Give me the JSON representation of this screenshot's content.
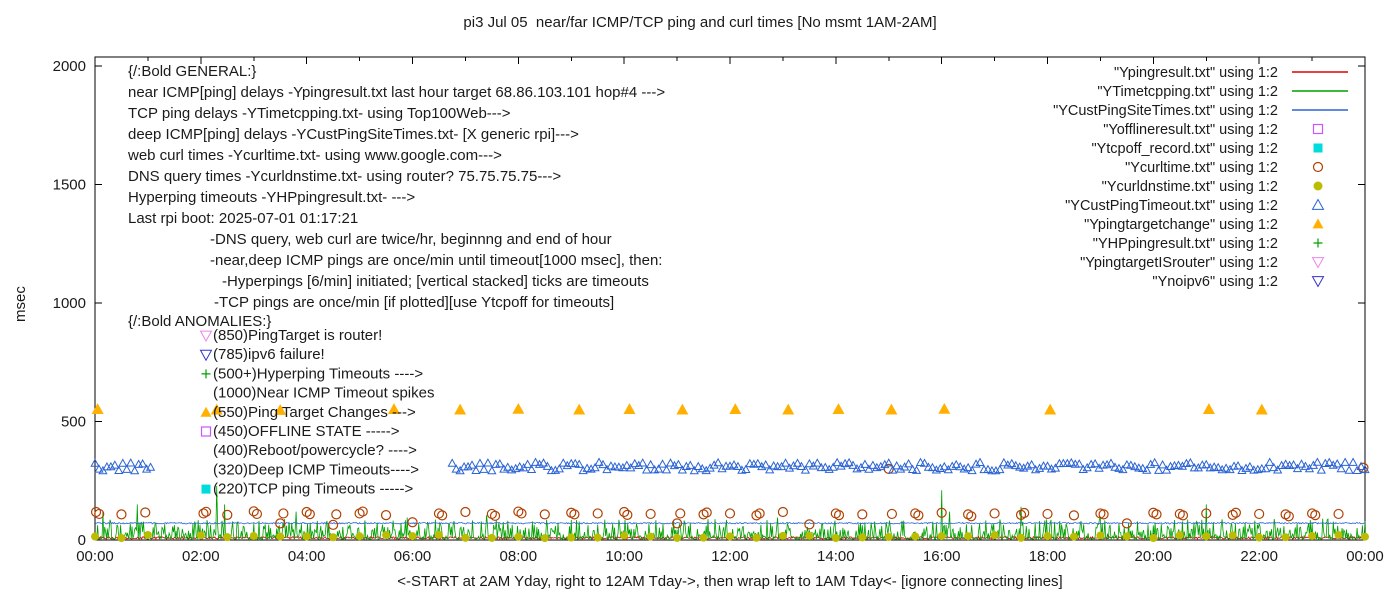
{
  "title": "pi3 Jul 05  near/far ICMP/TCP ping and curl times [No msmt 1AM-2AM]",
  "xlabel": "<-START at 2AM Yday, right to 12AM Tday->, then wrap left to 1AM Tday<- [ignore connecting lines]",
  "ylabel": "msec",
  "chart_data": {
    "type": "scatter",
    "grid": false,
    "x_axis": {
      "range": [
        0,
        24
      ],
      "tick_hours": [
        0,
        2,
        4,
        6,
        8,
        10,
        12,
        14,
        16,
        18,
        20,
        22,
        24
      ],
      "tick_labels": [
        "00:00",
        "02:00",
        "04:00",
        "06:00",
        "08:00",
        "10:00",
        "12:00",
        "14:00",
        "16:00",
        "18:00",
        "20:00",
        "22:00",
        "00:00"
      ]
    },
    "y_axis": {
      "range": [
        0,
        2000
      ],
      "ticks": [
        0,
        500,
        1000,
        1500,
        2000
      ]
    },
    "legend": [
      {
        "label": "\"Ypingresult.txt\" using 1:2",
        "marker": "line",
        "color": "#e00000"
      },
      {
        "label": "\"YTimetcpping.txt\" using 1:2",
        "marker": "line",
        "color": "#00a000"
      },
      {
        "label": "\"YCustPingSiteTimes.txt\" using 1:2",
        "marker": "line",
        "color": "#2a63d4"
      },
      {
        "label": "\"Yofflineresult.txt\" using 1:2",
        "marker": "square-open",
        "color": "#cc55ff"
      },
      {
        "label": "\"Ytcpoff_record.txt\" using 1:2",
        "marker": "square-filled",
        "color": "#00dcdc"
      },
      {
        "label": "\"Ycurltime.txt\" using 1:2",
        "marker": "circle-open",
        "color": "#b04000"
      },
      {
        "label": "\"Ycurldnstime.txt\" using 1:2",
        "marker": "circle-filled",
        "color": "#bcbc00"
      },
      {
        "label": "\"YCustPingTimeout.txt\" using 1:2",
        "marker": "triangle-open",
        "color": "#2a63d4"
      },
      {
        "label": "\"Ypingtargetchange\" using 1:2",
        "marker": "triangle-filled",
        "color": "#ffb000"
      },
      {
        "label": "\"YHPpingresult.txt\" using 1:2",
        "marker": "plus",
        "color": "#00a000"
      },
      {
        "label": "\"YpingtargetISrouter\" using 1:2",
        "marker": "triangle-down-open",
        "color": "#ee82ee"
      },
      {
        "label": "\"Ynoipv6\" using 1:2",
        "marker": "triangle-down-open",
        "color": "#3333cc"
      }
    ],
    "annotations": {
      "general": {
        "heading": "{/:Bold GENERAL:}",
        "lines": [
          "near ICMP[ping] delays -Ypingresult.txt last hour target 68.86.103.101 hop#4 --->",
          "TCP ping delays -YTimetcpping.txt- using Top100Web--->",
          "deep ICMP[ping] delays -YCustPingSiteTimes.txt- [X generic rpi]--->",
          "web curl times -Ycurltime.txt- using www.google.com--->",
          "DNS query times -Ycurldnstime.txt- using router? 75.75.75.75--->",
          "Hyperping timeouts -YHPpingresult.txt- --->",
          "Last rpi boot: 2025-07-01 01:17:21"
        ],
        "notes": [
          "-DNS query, web curl are twice/hr, beginnng and end of hour",
          "-near,deep ICMP pings are once/min until timeout[1000 msec], then:",
          "-Hyperpings [6/min] initiated; [vertical stacked] ticks are timeouts",
          "-TCP pings are once/min [if plotted][use Ytcpoff for timeouts]"
        ]
      },
      "anomalies": {
        "heading": "{/:Bold ANOMALIES:}",
        "items": [
          {
            "marker": "triangle-down-open",
            "color": "#ee82ee",
            "text": "(850)PingTarget is router!"
          },
          {
            "marker": "triangle-down-open",
            "color": "#3333cc",
            "text": "(785)ipv6 failure!"
          },
          {
            "marker": "plus",
            "color": "#00a000",
            "text": "(500+)Hyperping Timeouts ---->"
          },
          {
            "marker": null,
            "color": null,
            "text": "(1000)Near ICMP Timeout spikes"
          },
          {
            "marker": "triangle-filled",
            "color": "#ffb000",
            "text": "(550)Ping Target Changes --->"
          },
          {
            "marker": "square-open",
            "color": "#cc55ff",
            "text": "(450)OFFLINE STATE ----->"
          },
          {
            "marker": null,
            "color": null,
            "text": "(400)Reboot/powercycle? ---->"
          },
          {
            "marker": null,
            "color": null,
            "text": "(320)Deep ICMP Timeouts---->"
          },
          {
            "marker": "square-filled",
            "color": "#00dcdc",
            "text": "(220)TCP ping Timeouts ----->"
          }
        ]
      }
    },
    "series": [
      {
        "name": "Ypingresult",
        "style": "noisy-line",
        "color": "#e00000",
        "base": 4,
        "amp": 10,
        "pow": 1,
        "seed": 11,
        "spikes": []
      },
      {
        "name": "YTimetcpping",
        "style": "noisy-line",
        "color": "#00a000",
        "base": 4,
        "amp": 85,
        "pow": 3,
        "seed": 22,
        "spikes": [
          [
            0.15,
            120
          ],
          [
            0.8,
            150
          ],
          [
            2.3,
            228
          ],
          [
            2.45,
            150
          ],
          [
            3.8,
            120
          ],
          [
            5.9,
            95
          ],
          [
            7.4,
            105
          ],
          [
            9.0,
            85
          ],
          [
            12.9,
            95
          ],
          [
            16.0,
            210
          ],
          [
            16.15,
            120
          ],
          [
            17.5,
            140
          ],
          [
            19.0,
            95
          ],
          [
            21.0,
            150
          ],
          [
            23.2,
            90
          ]
        ]
      },
      {
        "name": "YCustPingSiteTimes",
        "style": "noisy-line",
        "color": "#2a63d4",
        "base": 68,
        "amp": 6,
        "pow": 1,
        "seed": 33,
        "spikes": []
      },
      {
        "name": "Yofflineresult",
        "style": "points",
        "marker": "square-open",
        "color": "#cc55ff",
        "size": 4.5,
        "points": []
      },
      {
        "name": "Ytcpoff_record",
        "style": "points",
        "marker": "square-filled",
        "color": "#00dcdc",
        "size": 4.5,
        "points": []
      },
      {
        "name": "Ycurltime",
        "style": "points",
        "marker": "circle-open",
        "color": "#b04000",
        "size": 4.5,
        "points": [
          [
            0.02,
            118
          ],
          [
            0.08,
            110
          ],
          [
            0.5,
            108
          ],
          [
            0.95,
            116
          ],
          [
            2.05,
            112
          ],
          [
            2.1,
            119
          ],
          [
            2.5,
            106
          ],
          [
            3.0,
            121
          ],
          [
            3.06,
            110
          ],
          [
            3.5,
            70
          ],
          [
            3.56,
            112
          ],
          [
            4.0,
            118
          ],
          [
            4.06,
            109
          ],
          [
            4.5,
            64
          ],
          [
            4.56,
            108
          ],
          [
            5.0,
            112
          ],
          [
            5.06,
            120
          ],
          [
            5.5,
            105
          ],
          [
            6.0,
            75
          ],
          [
            6.5,
            112
          ],
          [
            6.56,
            104
          ],
          [
            7.0,
            118
          ],
          [
            7.5,
            110
          ],
          [
            7.56,
            102
          ],
          [
            8.0,
            120
          ],
          [
            8.06,
            112
          ],
          [
            8.5,
            108
          ],
          [
            9.0,
            115
          ],
          [
            9.06,
            108
          ],
          [
            9.5,
            112
          ],
          [
            10.0,
            118
          ],
          [
            10.06,
            106
          ],
          [
            10.5,
            110
          ],
          [
            11.0,
            70
          ],
          [
            11.06,
            112
          ],
          [
            11.5,
            108
          ],
          [
            11.56,
            116
          ],
          [
            12.0,
            112
          ],
          [
            12.5,
            104
          ],
          [
            12.56,
            112
          ],
          [
            13.0,
            118
          ],
          [
            13.5,
            66
          ],
          [
            14.0,
            112
          ],
          [
            14.06,
            105
          ],
          [
            14.5,
            108
          ],
          [
            15.0,
            300
          ],
          [
            15.06,
            110
          ],
          [
            15.5,
            112
          ],
          [
            15.56,
            104
          ],
          [
            16.0,
            115
          ],
          [
            16.5,
            108
          ],
          [
            16.56,
            100
          ],
          [
            17.0,
            112
          ],
          [
            17.5,
            106
          ],
          [
            17.56,
            114
          ],
          [
            18.0,
            110
          ],
          [
            18.5,
            104
          ],
          [
            19.0,
            112
          ],
          [
            19.06,
            108
          ],
          [
            19.5,
            70
          ],
          [
            20.0,
            115
          ],
          [
            20.06,
            108
          ],
          [
            20.5,
            110
          ],
          [
            20.56,
            104
          ],
          [
            21.0,
            112
          ],
          [
            21.5,
            106
          ],
          [
            21.56,
            115
          ],
          [
            22.0,
            110
          ],
          [
            22.5,
            108
          ],
          [
            22.56,
            100
          ],
          [
            23.0,
            112
          ],
          [
            23.06,
            105
          ],
          [
            23.5,
            110
          ],
          [
            23.97,
            305
          ]
        ]
      },
      {
        "name": "Ycurldnstime",
        "style": "pattern-points",
        "marker": "circle-filled",
        "color": "#bcbc00",
        "size": 4,
        "pattern": {
          "start": 0,
          "end": 24,
          "interval": 0.5,
          "skip": [
            1.2,
            1.9
          ],
          "base": 8,
          "amp": 14,
          "seed": 44
        }
      },
      {
        "name": "YCustPingTimeout",
        "style": "band",
        "marker": "triangle-open",
        "color": "#2a63d4",
        "size": 3.8,
        "seed": 55,
        "bands": [
          {
            "from": 0,
            "to": 1.05,
            "y": 310,
            "jitter": 18,
            "step": 0.075
          },
          {
            "from": 6.75,
            "to": 24,
            "y": 310,
            "jitter": 18,
            "step": 0.075
          }
        ]
      },
      {
        "name": "Ypingtargetchange",
        "style": "points",
        "marker": "triangle-filled",
        "color": "#ffb000",
        "size": 6,
        "points": [
          [
            0.05,
            552
          ],
          [
            2.3,
            550
          ],
          [
            3.5,
            548
          ],
          [
            5.65,
            552
          ],
          [
            6.9,
            550
          ],
          [
            8.0,
            553
          ],
          [
            9.15,
            550
          ],
          [
            10.1,
            552
          ],
          [
            11.1,
            550
          ],
          [
            12.1,
            552
          ],
          [
            13.1,
            550
          ],
          [
            14.05,
            552
          ],
          [
            15.05,
            550
          ],
          [
            16.05,
            553
          ],
          [
            18.05,
            550
          ],
          [
            21.05,
            552
          ],
          [
            22.05,
            550
          ]
        ]
      },
      {
        "name": "YHPpingresult",
        "style": "points",
        "marker": "plus",
        "color": "#00a000",
        "size": 5,
        "points": []
      },
      {
        "name": "YpingtargetISrouter",
        "style": "points",
        "marker": "triangle-down-open",
        "color": "#ee82ee",
        "size": 5,
        "points": []
      },
      {
        "name": "Ynoipv6",
        "style": "points",
        "marker": "triangle-down-open",
        "color": "#3333cc",
        "size": 5,
        "points": []
      }
    ]
  }
}
